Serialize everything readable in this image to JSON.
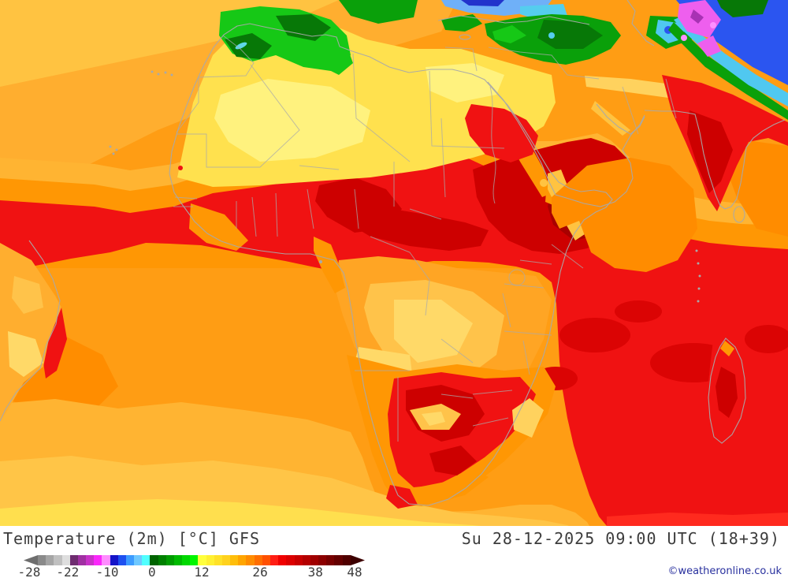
{
  "legend": {
    "title": "Temperature (2m) [°C] GFS",
    "datetime": "Su 28-12-2025 09:00 UTC (18+39)",
    "copyright": "©weatheronline.co.uk",
    "colorbar": {
      "unit": "°C",
      "min_label": "-28",
      "max_label": "48",
      "labels": [
        "-28",
        "-22",
        "-10",
        "0",
        "12",
        "26",
        "38",
        "48"
      ],
      "label_pos_pct": [
        1.6,
        12.9,
        24.5,
        37.6,
        52.2,
        69.3,
        85.5,
        97.0
      ],
      "left_arrow": "#6e6e6e",
      "right_arrow": "#3c0000",
      "segments": [
        "#8a8a8a",
        "#a5a5a5",
        "#c0c0c0",
        "#dedede",
        "#6e2c70",
        "#a030a2",
        "#c832c8",
        "#fa28fa",
        "#ff8cff",
        "#1414c8",
        "#1e50f0",
        "#3c9bff",
        "#6ec8ff",
        "#50ffff",
        "#006400",
        "#008000",
        "#009c00",
        "#00ba00",
        "#00d800",
        "#00f600",
        "#ffff3c",
        "#fff032",
        "#ffe128",
        "#ffd21e",
        "#ffbe0a",
        "#ffa500",
        "#ff8c00",
        "#ff6e00",
        "#ff5000",
        "#ff1e14",
        "#f00000",
        "#dc0000",
        "#c80000",
        "#b40000",
        "#a00000",
        "#8c0000",
        "#780000",
        "#640000",
        "#500000"
      ]
    }
  },
  "map": {
    "parameter": "Temperature (2m)",
    "model": "GFS",
    "region": "Africa",
    "palette": {
      "ink": "#3c3c3c",
      "copyright_blue": "#28309e",
      "border_gray": "#a9a9a9",
      "ocean_base": "#ff9d14",
      "ocean_light": "#ffae2f",
      "ocean_top": "#ffc341",
      "ocean_deep": "#ff8d00",
      "band_light": "#ffb432",
      "band_mid": "#ffc547",
      "bottom_yellow": "#ffdf4e",
      "sahara_yellow": "#ffe14e",
      "sahara_pale": "#fff27e",
      "trans_orange": "#ff9704",
      "sea_orange": "#ff8c00",
      "red": "#f01212",
      "red_bright": "#ff2a1e",
      "dark_red": "#cd0000",
      "deep_red": "#a80000",
      "maroon": "#8c0000",
      "dark_sea_red": "#db0404",
      "green_bright": "#16c816",
      "green_mid": "#0aa00a",
      "green_dark": "#077807",
      "sky_cyan": "#50c8f0",
      "cyan": "#55cdee",
      "blue": "#2b55f0",
      "blue_dark": "#2233cc",
      "light_blue": "#6fb0f8",
      "magenta": "#ee5fee",
      "pink": "#ff90ff",
      "purple": "#a832b4",
      "interior_orange": "#ffa524",
      "interior_light": "#ffc34a",
      "interior_pale": "#ffd968",
      "cream": "#ffd25e",
      "lake_cyan": "#5fd8e8"
    }
  }
}
